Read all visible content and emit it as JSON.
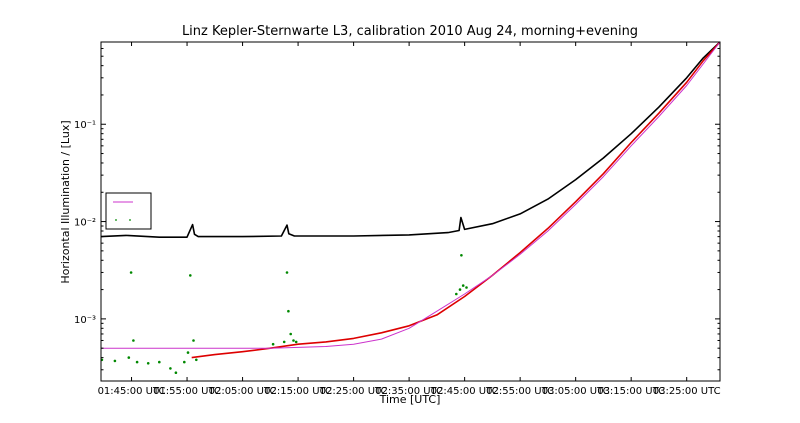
{
  "chart_data": {
    "type": "line",
    "title": "Linz Kepler-Sternwarte L3, calibration 2010 Aug 24, morning+evening",
    "xlabel": "Time [UTC]",
    "ylabel": "Horizontal Illumination / [Lux]",
    "xscale": "time",
    "yscale": "log",
    "xlim": [
      "01:39:30",
      "03:31:00"
    ],
    "ylim": [
      0.00023,
      0.7
    ],
    "x_ticks": [
      "01:45:00 UTC",
      "01:55:00 UTC",
      "02:05:00 UTC",
      "02:15:00 UTC",
      "02:25:00 UTC",
      "02:35:00 UTC",
      "02:45:00 UTC",
      "02:55:00 UTC",
      "03:05:00 UTC",
      "03:15:00 UTC",
      "03:25:00 UTC"
    ],
    "y_ticks": [
      {
        "value": 0.001,
        "label": "10⁻³"
      },
      {
        "value": 0.01,
        "label": "10⁻²"
      },
      {
        "value": 0.1,
        "label": "10⁻¹"
      }
    ],
    "grid": false,
    "legend": {
      "position": "left",
      "entries": [
        "",
        ""
      ]
    },
    "series": [
      {
        "color": "#000000",
        "style": "line",
        "x": [
          "01:39:30",
          "01:44:00",
          "01:50:00",
          "01:55:00",
          "01:56:00",
          "01:56:20",
          "01:57:00",
          "02:05:00",
          "02:12:00",
          "02:13:00",
          "02:13:20",
          "02:14:20",
          "02:25:00",
          "02:35:00",
          "02:42:00",
          "02:44:00",
          "02:44:20",
          "02:45:00",
          "02:50:00",
          "02:55:00",
          "03:00:00",
          "03:05:00",
          "03:10:00",
          "03:15:00",
          "03:20:00",
          "03:25:00",
          "03:28:00",
          "03:31:00"
        ],
        "y": [
          0.007,
          0.0072,
          0.0069,
          0.0069,
          0.0093,
          0.0074,
          0.007,
          0.007,
          0.0071,
          0.0092,
          0.0075,
          0.0071,
          0.0071,
          0.0073,
          0.0077,
          0.0081,
          0.011,
          0.0083,
          0.0095,
          0.012,
          0.017,
          0.027,
          0.045,
          0.08,
          0.15,
          0.3,
          0.48,
          0.7
        ]
      },
      {
        "color": "#dd0000",
        "style": "line",
        "x": [
          "01:55:50",
          "02:00:00",
          "02:05:00",
          "02:10:00",
          "02:15:00",
          "02:20:00",
          "02:25:00",
          "02:30:00",
          "02:35:00",
          "02:40:00",
          "02:45:00",
          "02:50:00",
          "02:55:00",
          "03:00:00",
          "03:05:00",
          "03:10:00",
          "03:15:00",
          "03:20:00",
          "03:25:00",
          "03:28:00",
          "03:31:00"
        ],
        "y": [
          0.0004,
          0.00043,
          0.00046,
          0.0005,
          0.00055,
          0.00058,
          0.00063,
          0.00072,
          0.00085,
          0.0011,
          0.0017,
          0.0028,
          0.0048,
          0.0085,
          0.016,
          0.031,
          0.065,
          0.13,
          0.27,
          0.45,
          0.7
        ]
      },
      {
        "color": "#cc33cc",
        "style": "line",
        "x": [
          "01:39:30",
          "01:50:00",
          "02:00:00",
          "02:10:00",
          "02:20:00",
          "02:25:00",
          "02:30:00",
          "02:35:00",
          "02:40:00",
          "02:45:00",
          "02:50:00",
          "02:55:00",
          "03:00:00",
          "03:05:00",
          "03:10:00",
          "03:15:00",
          "03:20:00",
          "03:25:00",
          "03:31:00"
        ],
        "y": [
          0.0005,
          0.0005,
          0.0005,
          0.0005,
          0.00052,
          0.00055,
          0.00062,
          0.0008,
          0.0012,
          0.0018,
          0.0028,
          0.0046,
          0.008,
          0.015,
          0.029,
          0.06,
          0.12,
          0.25,
          0.7
        ]
      },
      {
        "color": "#008800",
        "style": "dots",
        "x": [
          "01:39:40",
          "01:42:00",
          "01:44:30",
          "01:44:55",
          "01:45:20",
          "01:46:00",
          "01:48:00",
          "01:50:00",
          "01:52:00",
          "01:53:00",
          "01:54:30",
          "01:55:10",
          "01:55:35",
          "01:56:10",
          "01:56:40",
          "02:10:30",
          "02:12:30",
          "02:13:00",
          "02:13:15",
          "02:13:40",
          "02:14:10",
          "02:14:40",
          "02:43:30",
          "02:44:10",
          "02:44:25",
          "02:44:45",
          "02:45:20"
        ],
        "y": [
          0.00038,
          0.00037,
          0.0004,
          0.003,
          0.0006,
          0.00036,
          0.00035,
          0.00036,
          0.00031,
          0.00028,
          0.00036,
          0.00045,
          0.0028,
          0.0006,
          0.00038,
          0.00055,
          0.00058,
          0.003,
          0.0012,
          0.0007,
          0.0006,
          0.00058,
          0.0018,
          0.002,
          0.0045,
          0.0022,
          0.0021
        ]
      }
    ]
  }
}
